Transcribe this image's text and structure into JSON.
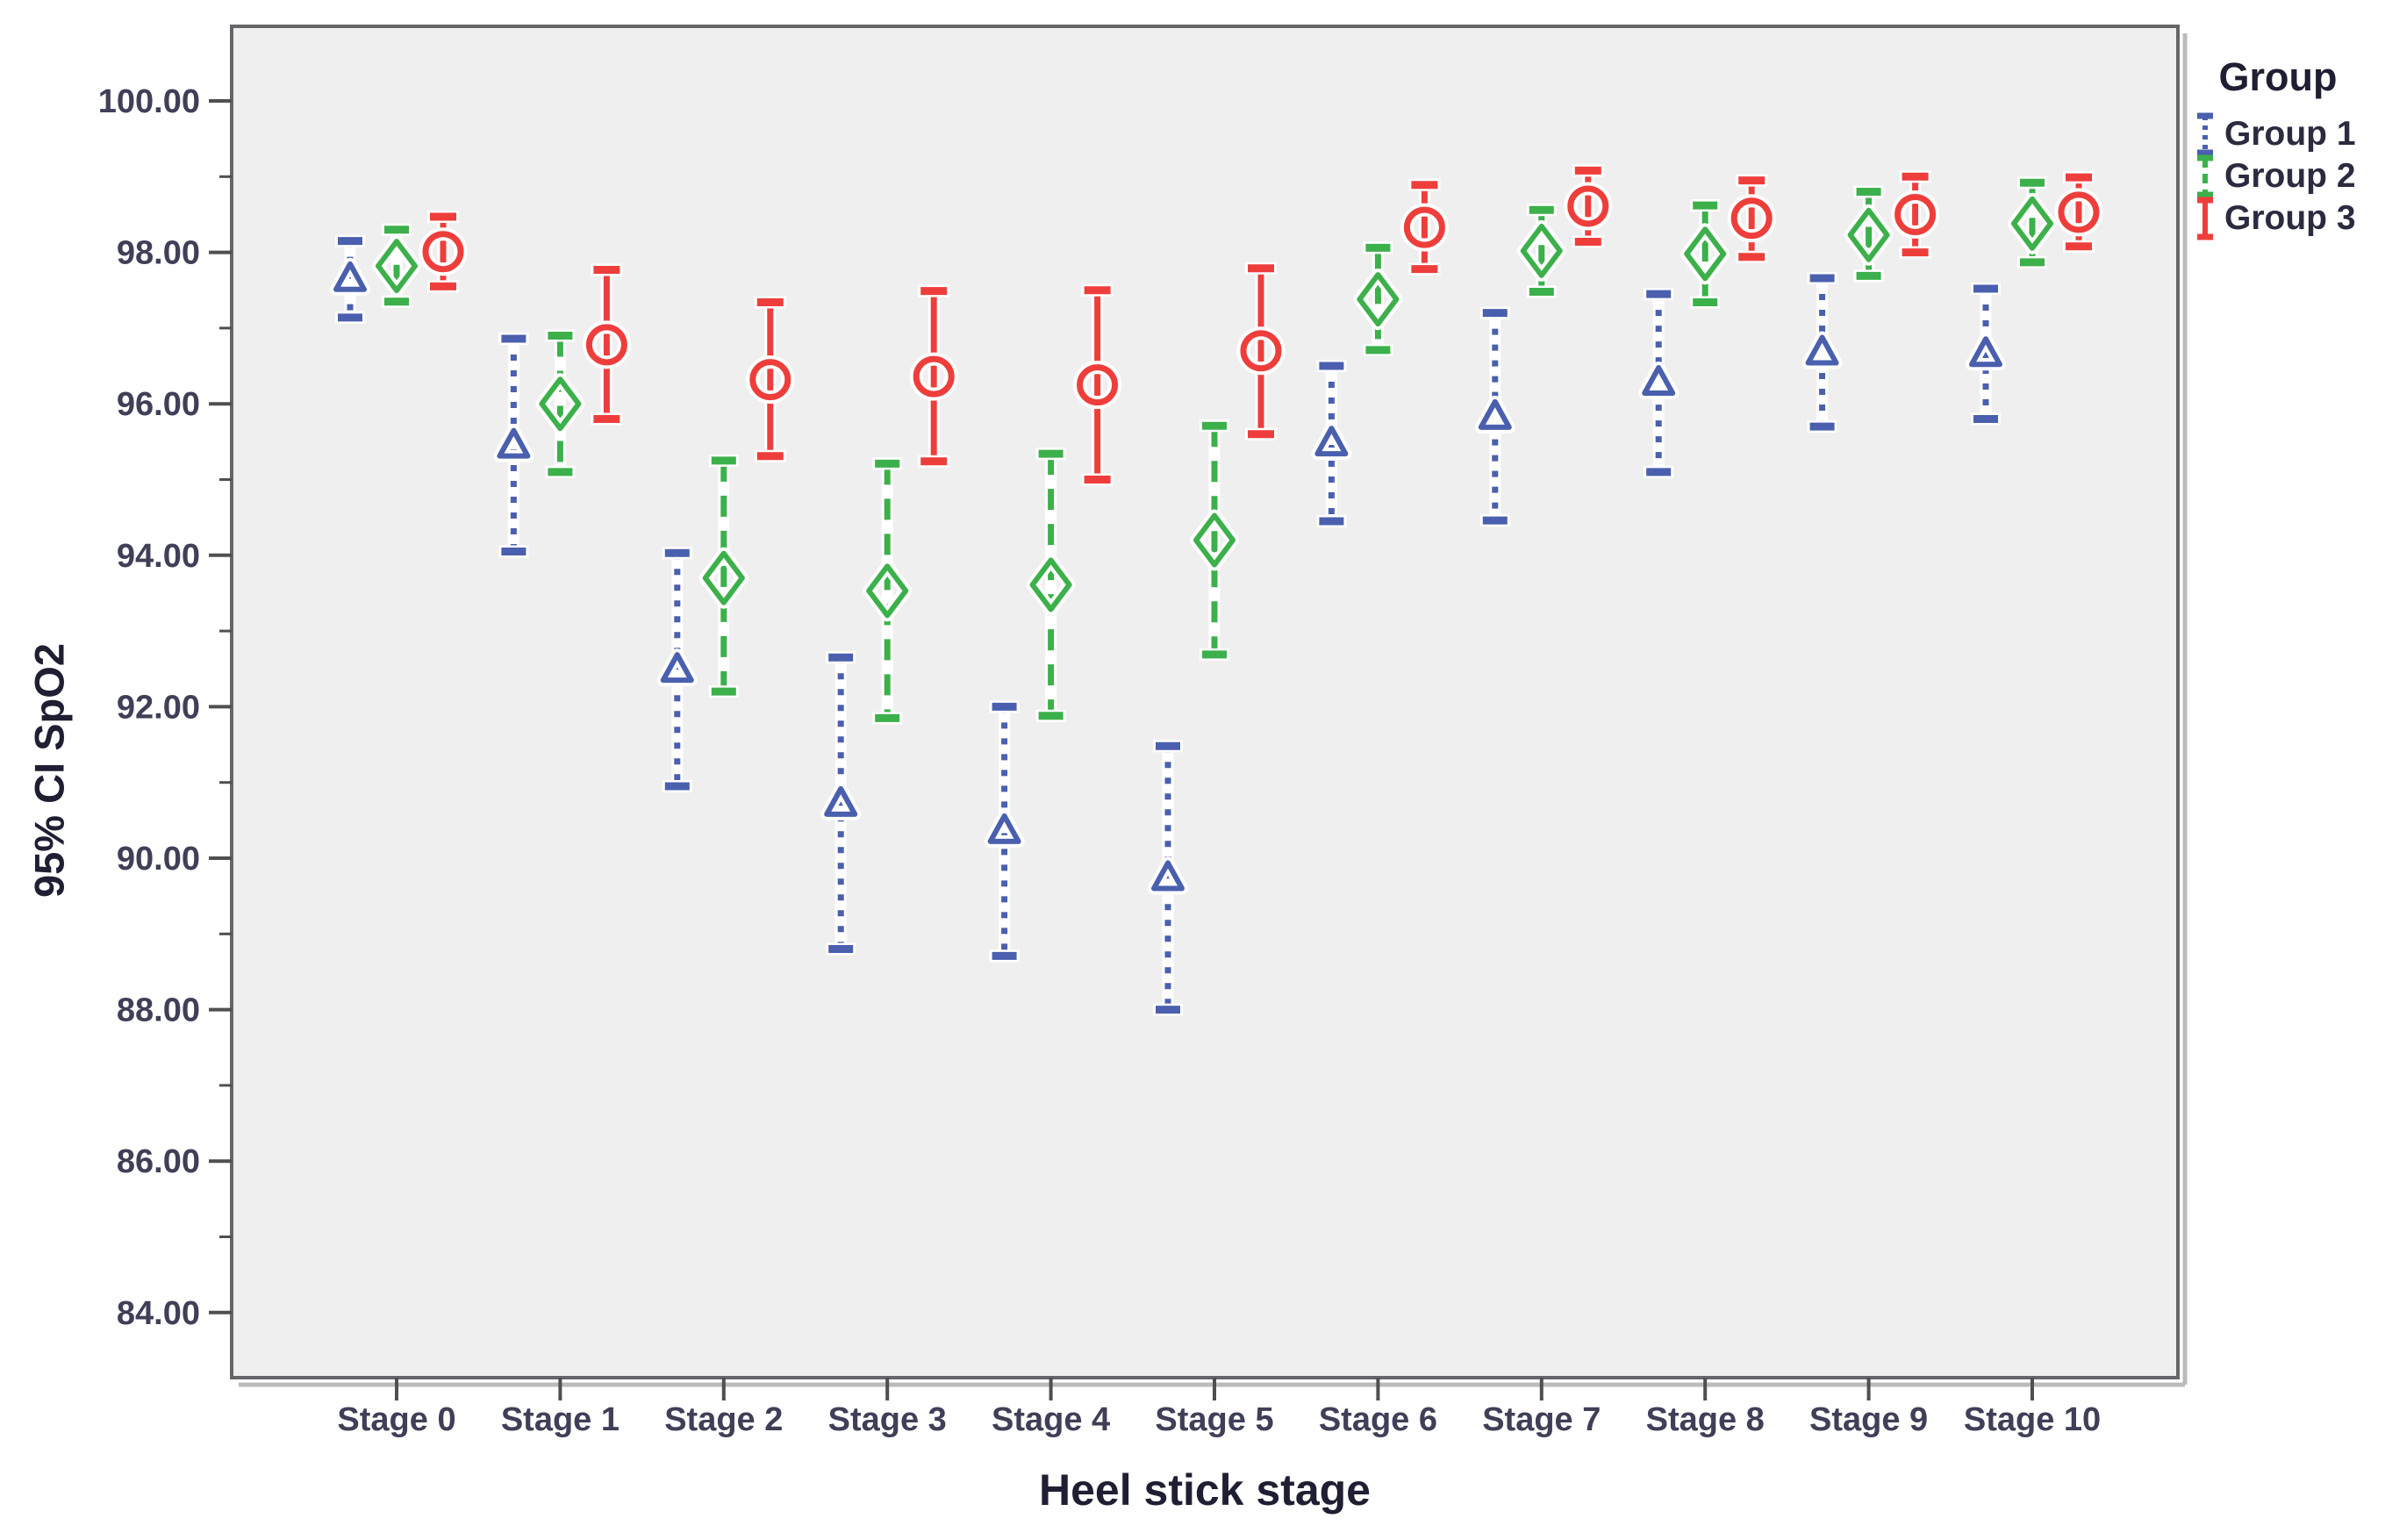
{
  "y_axis": {
    "title": "95% CI SpO2",
    "major_ticks": [
      {
        "value": 100,
        "label": "100.00"
      },
      {
        "value": 98,
        "label": "98.00"
      },
      {
        "value": 96,
        "label": "96.00"
      },
      {
        "value": 94,
        "label": "94.00"
      },
      {
        "value": 92,
        "label": "92.00"
      },
      {
        "value": 90,
        "label": "90.00"
      },
      {
        "value": 88,
        "label": "88.00"
      },
      {
        "value": 86,
        "label": "86.00"
      },
      {
        "value": 84,
        "label": "84.00"
      }
    ],
    "minor_tick_values": [
      99,
      97,
      95,
      93,
      91,
      89,
      87,
      85
    ]
  },
  "x_axis": {
    "title": "Heel stick stage"
  },
  "legend": {
    "title": "Group",
    "entries": [
      {
        "label": "Group 1",
        "color": "#4a5fae",
        "line_style": "dotted",
        "marker": "triangle"
      },
      {
        "label": "Group 2",
        "color": "#3cb04a",
        "line_style": "dashed",
        "marker": "diamond"
      },
      {
        "label": "Group 3",
        "color": "#ee3e3b",
        "line_style": "solid",
        "marker": "circle"
      }
    ]
  },
  "colors": {
    "plot_background": "#f0eff0",
    "frame": "#66666a",
    "tick_label": "#3f3f58",
    "frame_shadow": "#bbbbbb"
  },
  "chart_data": {
    "type": "errorbar",
    "title": "",
    "xlabel": "Heel stick stage",
    "ylabel": "95% CI SpO2",
    "ylim": [
      84,
      100
    ],
    "grid": false,
    "legend_position": "right-top",
    "categories": [
      "Stage 0",
      "Stage 1",
      "Stage 2",
      "Stage 3",
      "Stage 4",
      "Stage 5",
      "Stage 6",
      "Stage 7",
      "Stage 8",
      "Stage 9",
      "Stage 10"
    ],
    "series": [
      {
        "name": "Group 1",
        "color": "#4a5fae",
        "marker": "triangle",
        "line_style": "dotted",
        "mean": [
          97.65,
          95.45,
          92.49,
          90.72,
          90.36,
          89.74,
          95.48,
          95.83,
          96.28,
          96.68,
          96.66
        ],
        "ci_low": [
          97.14,
          94.05,
          90.95,
          88.8,
          88.71,
          88.0,
          94.45,
          94.46,
          95.1,
          95.7,
          95.8
        ],
        "ci_high": [
          98.15,
          96.86,
          94.03,
          92.65,
          92.0,
          91.48,
          96.5,
          97.2,
          97.45,
          97.66,
          97.52
        ]
      },
      {
        "name": "Group 2",
        "color": "#3cb04a",
        "marker": "diamond",
        "line_style": "dashed",
        "mean": [
          97.82,
          96.0,
          93.7,
          93.53,
          93.61,
          94.2,
          97.38,
          98.02,
          97.98,
          98.23,
          98.38
        ],
        "ci_low": [
          97.35,
          95.1,
          92.2,
          91.85,
          91.88,
          92.69,
          96.71,
          97.48,
          97.34,
          97.69,
          97.87
        ],
        "ci_high": [
          98.3,
          96.9,
          95.25,
          95.21,
          95.34,
          95.71,
          98.06,
          98.56,
          98.62,
          98.8,
          98.92
        ]
      },
      {
        "name": "Group 3",
        "color": "#ee3e3b",
        "marker": "circle",
        "line_style": "solid",
        "mean": [
          98.01,
          96.78,
          96.32,
          96.36,
          96.25,
          96.7,
          98.33,
          98.61,
          98.45,
          98.5,
          98.53
        ],
        "ci_low": [
          97.55,
          95.8,
          95.31,
          95.24,
          95.0,
          95.6,
          97.78,
          98.14,
          97.94,
          98.0,
          98.08
        ],
        "ci_high": [
          98.47,
          97.77,
          97.34,
          97.49,
          97.5,
          97.79,
          98.89,
          99.08,
          98.95,
          99.0,
          98.99
        ]
      }
    ]
  }
}
